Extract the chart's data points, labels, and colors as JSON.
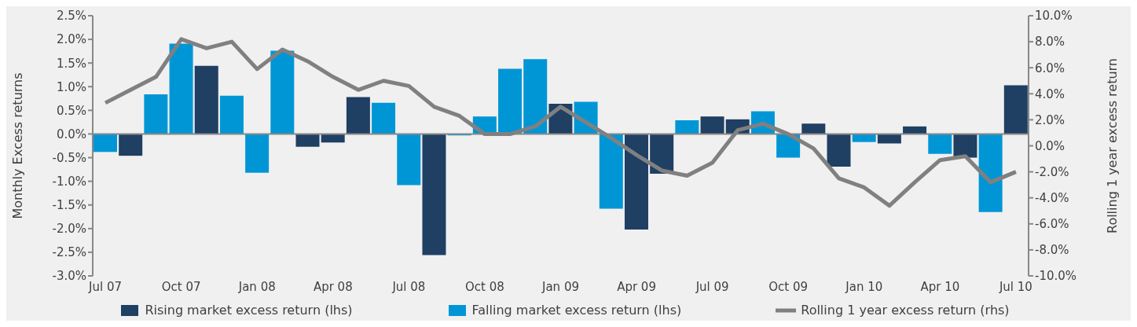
{
  "chart_data": {
    "type": "bar",
    "stacked": true,
    "ylabel": "Monthly Excess returns",
    "y2label": "Rolling 1 year excess return",
    "categories": [
      "Jul 07",
      null,
      null,
      "Oct 07",
      null,
      null,
      "Jan 08",
      null,
      null,
      "Apr 08",
      null,
      null,
      "Jul 08",
      null,
      null,
      "Oct 08",
      null,
      null,
      "Jan 09",
      null,
      null,
      "Apr 09",
      null,
      null,
      "Jul 09",
      null,
      null,
      "Oct 09",
      null,
      null,
      "Jan 10",
      null,
      null,
      "Apr 10",
      null,
      null,
      "Jul 10"
    ],
    "series": [
      {
        "name": "Rising market excess return (lhs)",
        "color": "#1f3f63",
        "values": [
          null,
          -0.46,
          null,
          null,
          1.44,
          null,
          null,
          null,
          -0.27,
          -0.18,
          0.78,
          null,
          null,
          -2.56,
          null,
          null,
          null,
          null,
          0.64,
          null,
          null,
          -2.02,
          -0.84,
          null,
          0.37,
          0.31,
          null,
          null,
          0.22,
          -0.69,
          null,
          -0.2,
          0.16,
          null,
          -0.5,
          null,
          1.03
        ]
      },
      {
        "name": "Falling market excess return (lhs)",
        "color": "#0096d6",
        "values": [
          -0.38,
          null,
          0.84,
          1.91,
          null,
          0.81,
          -0.82,
          1.76,
          null,
          null,
          null,
          0.66,
          -1.08,
          null,
          -0.03,
          0.37,
          1.38,
          1.58,
          null,
          0.68,
          -1.58,
          null,
          null,
          0.29,
          null,
          null,
          0.48,
          -0.5,
          null,
          null,
          -0.17,
          null,
          null,
          -0.42,
          null,
          -1.65,
          null
        ]
      },
      {
        "name": "Rolling 1 year excess return (rhs)",
        "type": "line",
        "axis": "y2",
        "color": "#808080",
        "values": [
          3.3,
          4.3,
          5.3,
          8.2,
          7.5,
          8.0,
          5.9,
          7.4,
          6.5,
          5.3,
          4.3,
          5.0,
          4.6,
          3.0,
          2.3,
          0.9,
          0.9,
          1.5,
          3.0,
          1.8,
          0.6,
          -0.7,
          -1.9,
          -2.3,
          -1.3,
          1.2,
          1.7,
          0.9,
          -0.2,
          -2.5,
          -3.2,
          -4.6,
          -2.8,
          -1.1,
          -0.8,
          -2.8,
          -2.0
        ]
      }
    ],
    "ylim": [
      -3.0,
      2.5
    ],
    "yticks": [
      {
        "value": -3.0,
        "label": "-3.0%"
      },
      {
        "value": -2.5,
        "label": "-2.5%"
      },
      {
        "value": -2.0,
        "label": "-2.0%"
      },
      {
        "value": -1.5,
        "label": "-1.5%"
      },
      {
        "value": -1.0,
        "label": "-1.0%"
      },
      {
        "value": -0.5,
        "label": "-0.5%"
      },
      {
        "value": 0,
        "label": "0.0%"
      },
      {
        "value": 0.5,
        "label": "0.5%"
      },
      {
        "value": 1.0,
        "label": "1.0%"
      },
      {
        "value": 1.5,
        "label": "1.5%"
      },
      {
        "value": 2.0,
        "label": "2.0%"
      },
      {
        "value": 2.5,
        "label": "2.5%"
      }
    ],
    "y2lim": [
      -10.0,
      10.0
    ],
    "y2ticks": [
      {
        "value": -10,
        "label": "-10.0%"
      },
      {
        "value": -8,
        "label": "-8.0%"
      },
      {
        "value": -6,
        "label": "-6.0%"
      },
      {
        "value": -4,
        "label": "-4.0%"
      },
      {
        "value": -2,
        "label": "-2.0%"
      },
      {
        "value": 0,
        "label": "0.0%"
      },
      {
        "value": 2,
        "label": "2.0%"
      },
      {
        "value": 4,
        "label": "4.0%"
      },
      {
        "value": 6,
        "label": "6.0%"
      },
      {
        "value": 8,
        "label": "8.0%"
      },
      {
        "value": 10,
        "label": "10.0%"
      }
    ],
    "legend": "bottom",
    "marker": "none"
  }
}
